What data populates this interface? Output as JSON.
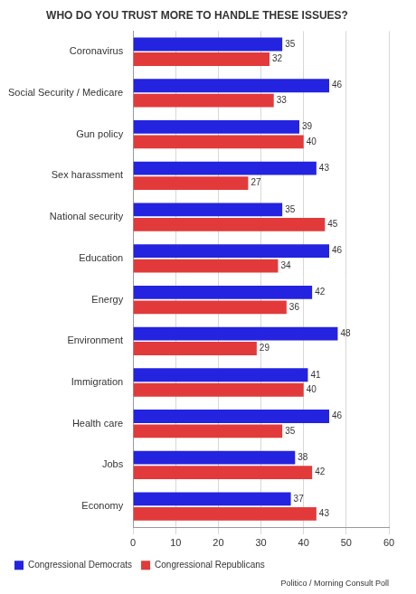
{
  "chart_data": {
    "type": "bar",
    "title": "WHO DO YOU TRUST MORE TO HANDLE THESE ISSUES?",
    "source": "Politico / Morning Consult Poll",
    "orientation": "horizontal",
    "categories": [
      "Coronavirus",
      "Social Security / Medicare",
      "Gun policy",
      "Sex harassment",
      "National security",
      "Education",
      "Energy",
      "Environment",
      "Immigration",
      "Health care",
      "Jobs",
      "Economy"
    ],
    "series": [
      {
        "name": "Congressional Democrats",
        "color": "#2323e0",
        "values": [
          35,
          46,
          39,
          43,
          35,
          46,
          42,
          48,
          41,
          46,
          38,
          37
        ]
      },
      {
        "name": "Congressional Republicans",
        "color": "#e23a3a",
        "values": [
          32,
          33,
          40,
          27,
          45,
          34,
          36,
          29,
          40,
          35,
          42,
          43
        ]
      }
    ],
    "xlim": [
      0,
      60
    ],
    "xticks": [
      0,
      10,
      20,
      30,
      40,
      50,
      60
    ],
    "grid": true,
    "legend": "bottom",
    "data_labels": true
  }
}
